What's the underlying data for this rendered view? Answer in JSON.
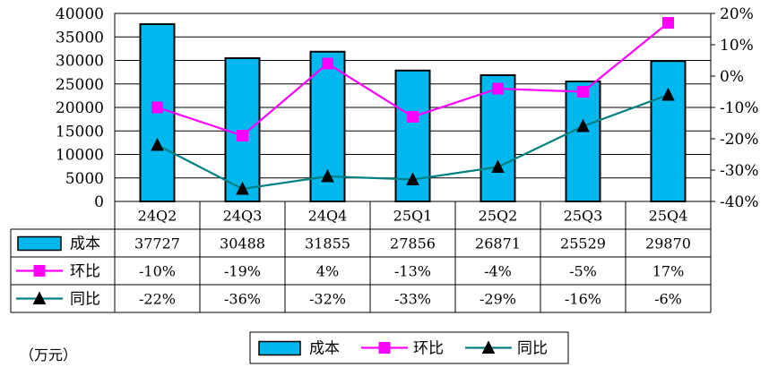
{
  "chart_data": {
    "type": "bar",
    "categories": [
      "24Q2",
      "24Q3",
      "24Q4",
      "25Q1",
      "25Q2",
      "25Q3",
      "25Q4"
    ],
    "series": [
      {
        "name": "成本",
        "kind": "bar",
        "axis": "left",
        "color": "#00b7ee",
        "values": [
          37727,
          30488,
          31855,
          27856,
          26871,
          25529,
          29870
        ],
        "labels": [
          "37727",
          "30488",
          "31855",
          "27856",
          "26871",
          "25529",
          "29870"
        ]
      },
      {
        "name": "环比",
        "kind": "line",
        "axis": "right",
        "color": "#ff00ff",
        "marker": "square",
        "values": [
          -10,
          -19,
          4,
          -13,
          -4,
          -5,
          17
        ],
        "labels": [
          "-10%",
          "-19%",
          "4%",
          "-13%",
          "-4%",
          "-5%",
          "17%"
        ]
      },
      {
        "name": "同比",
        "kind": "line",
        "axis": "right",
        "color": "#008080",
        "marker": "triangle",
        "values": [
          -22,
          -36,
          -32,
          -33,
          -29,
          -16,
          -6
        ],
        "labels": [
          "-22%",
          "-36%",
          "-32%",
          "-33%",
          "-29%",
          "-16%",
          "-6%"
        ]
      }
    ],
    "ylim": [
      0,
      40000
    ],
    "y_ticks": [
      "40000",
      "35000",
      "30000",
      "25000",
      "20000",
      "15000",
      "10000",
      "5000",
      "0"
    ],
    "y2lim": [
      -40,
      20
    ],
    "y2_ticks": [
      "20%",
      "10%",
      "0%",
      "-10%",
      "-20%",
      "-30%",
      "-40%"
    ],
    "unit_label": "（万元）",
    "legend_position": "bottom",
    "data_table": true,
    "grid": true
  }
}
